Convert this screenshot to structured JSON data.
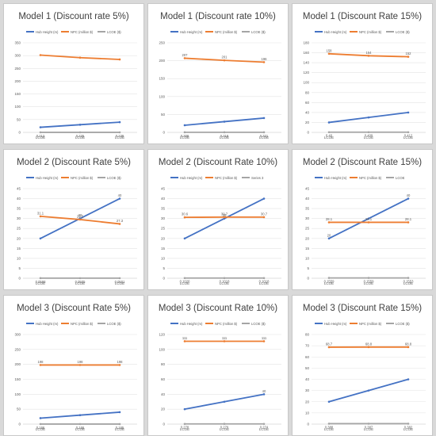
{
  "colors": {
    "hub": "#4472c4",
    "npc": "#ed7d31",
    "lcoe": "#a5a5a5",
    "grid": "#e3e3e3",
    "axis": "#bfbfbf",
    "text": "#595959"
  },
  "chart_data": [
    {
      "type": "line",
      "title": "Model 1 (Discount rate 5%)",
      "categories": [
        "LCOE",
        "LCOE",
        "LCOE"
      ],
      "ylim": [
        0,
        350
      ],
      "yticks": [
        0,
        50,
        100,
        150,
        200,
        250,
        300,
        350
      ],
      "series": [
        {
          "name": "Hub Height (m)",
          "values": [
            20,
            30,
            40
          ],
          "labels": [
            "",
            "",
            ""
          ]
        },
        {
          "name": "NPC (million $)",
          "values": [
            302,
            292,
            285
          ],
          "labels": [
            "",
            "",
            ""
          ]
        },
        {
          "name": "LCOE ($)",
          "values": [
            0.212,
            0.225,
            0.239
          ],
          "labels": [
            "0.212",
            "0.225",
            "0.239"
          ]
        }
      ]
    },
    {
      "type": "line",
      "title": "Model 1 (Discount rate 10%)",
      "categories": [
        "LCOE",
        "LCOE",
        "LCOE"
      ],
      "ylim": [
        0,
        250
      ],
      "yticks": [
        0,
        50,
        100,
        150,
        200,
        250
      ],
      "series": [
        {
          "name": "Hub Height (m)",
          "values": [
            20,
            30,
            40
          ],
          "labels": [
            "",
            "",
            ""
          ]
        },
        {
          "name": "NPC (million $)",
          "values": [
            207,
            201,
            196
          ],
          "labels": [
            "207",
            "201",
            "196"
          ]
        },
        {
          "name": "LCOE ($)",
          "values": [
            0.308,
            0.318,
            0.321
          ],
          "labels": [
            "0.308",
            "0.318",
            "0.321"
          ]
        }
      ]
    },
    {
      "type": "line",
      "title": "Model 1 (Discount Rate 15%)",
      "categories": [
        "LCOE",
        "LCOE",
        "LCOE"
      ],
      "ylim": [
        0,
        180
      ],
      "yticks": [
        0,
        20,
        40,
        60,
        80,
        100,
        120,
        140,
        160,
        180
      ],
      "series": [
        {
          "name": "Hub Height (m)",
          "values": [
            20,
            30,
            40
          ],
          "labels": [
            "",
            "",
            ""
          ]
        },
        {
          "name": "NPC (million $)",
          "values": [
            158,
            154,
            152
          ],
          "labels": [
            "158",
            "154",
            "152"
          ]
        },
        {
          "name": "LCOE ($)",
          "values": [
            0.4,
            0.409,
            0.412
          ],
          "labels": [
            "0.40",
            "0.409",
            "0.412"
          ]
        }
      ]
    },
    {
      "type": "line",
      "title": "Model 2 (Discount Rate 5%)",
      "categories": [
        "LCOE",
        "LCOE",
        "LCOE"
      ],
      "ylim": [
        0,
        45
      ],
      "yticks": [
        0,
        5,
        10,
        15,
        20,
        25,
        30,
        35,
        40,
        45
      ],
      "series": [
        {
          "name": "Hub Height (m)",
          "values": [
            20,
            30,
            40
          ],
          "labels": [
            "",
            "30",
            "40"
          ]
        },
        {
          "name": "NPC (million $)",
          "values": [
            31.1,
            29.5,
            27.3
          ],
          "labels": [
            "31.1",
            "29.5",
            "27.3"
          ]
        },
        {
          "name": "LCOE ($)",
          "values": [
            0.0598,
            0.0505,
            0.0501
          ],
          "labels": [
            "0.0598",
            "0.0505",
            "0.0501"
          ]
        }
      ]
    },
    {
      "type": "line",
      "title": "Model 2 (Discount Rate 10%)",
      "categories": [
        "LCOE",
        "LCOE",
        "LCOE"
      ],
      "ylim": [
        0,
        45
      ],
      "yticks": [
        0,
        5,
        10,
        15,
        20,
        25,
        30,
        35,
        40,
        45
      ],
      "series": [
        {
          "name": "Hub Height (m)",
          "values": [
            20,
            30,
            40
          ],
          "labels": [
            "",
            "30",
            ""
          ]
        },
        {
          "name": "NPC (million $)",
          "values": [
            30.6,
            30.7,
            30.7
          ],
          "labels": [
            "30.6",
            "30.7",
            "30.7"
          ]
        },
        {
          "name": "Series 3",
          "values": [
            0.1026,
            0.1018,
            0.1018
          ],
          "labels": [
            "0.1026",
            "0.1018",
            "0.1018"
          ]
        }
      ]
    },
    {
      "type": "line",
      "title": "Model 2 (Discount Rate 15%)",
      "categories": [
        "LCOE",
        "LCOE",
        "LCOE"
      ],
      "ylim": [
        0,
        45
      ],
      "yticks": [
        0,
        5,
        10,
        15,
        20,
        25,
        30,
        35,
        40,
        45
      ],
      "series": [
        {
          "name": "Hub Height (m)",
          "values": [
            20,
            30,
            40
          ],
          "labels": [
            "20",
            "",
            "40"
          ]
        },
        {
          "name": "NPC (million $)",
          "values": [
            28.1,
            28.1,
            28.1
          ],
          "labels": [
            "28.1",
            "28.1",
            "28.1"
          ]
        },
        {
          "name": "LCOE",
          "values": [
            0.1559,
            0.1559,
            0.1553
          ],
          "labels": [
            "0.1559",
            "0.1559",
            "0.1553"
          ]
        }
      ]
    },
    {
      "type": "line",
      "title": "Model 3 (Discount Rate 5%)",
      "categories": [
        "LCOE",
        "LCOE",
        "LCOE"
      ],
      "ylim": [
        0,
        300
      ],
      "yticks": [
        0,
        50,
        100,
        150,
        200,
        250,
        300
      ],
      "series": [
        {
          "name": "Hub Height (m)",
          "values": [
            20,
            30,
            40
          ],
          "labels": [
            "",
            "",
            ""
          ]
        },
        {
          "name": "NPC (million $)",
          "values": [
            198,
            198,
            198
          ],
          "labels": [
            "198",
            "198",
            "198"
          ]
        },
        {
          "name": "LCOE ($)",
          "values": [
            0.166,
            0.166,
            0.165
          ],
          "labels": [
            "0.166",
            "0.166",
            "0.165"
          ]
        }
      ]
    },
    {
      "type": "line",
      "title": "Model 3 (Discount Rate 10%)",
      "categories": [
        "LCOE",
        "LCOE",
        "LCOE"
      ],
      "ylim": [
        0,
        120
      ],
      "yticks": [
        0,
        20,
        40,
        60,
        80,
        100,
        120
      ],
      "series": [
        {
          "name": "Hub Height (m)",
          "values": [
            20,
            30,
            40
          ],
          "labels": [
            "",
            "",
            "40"
          ]
        },
        {
          "name": "NPC (million $)",
          "values": [
            111,
            111,
            111
          ],
          "labels": [
            "111",
            "111",
            "111"
          ]
        },
        {
          "name": "LCOE ($)",
          "values": [
            0.278,
            0.279,
            0.274
          ],
          "labels": [
            "0.278",
            "0.279",
            "0.274"
          ]
        }
      ]
    },
    {
      "type": "line",
      "title": "Model 3 (Discount Rate 15%)",
      "categories": [
        "LCOE",
        "LCOE",
        "LCOE"
      ],
      "ylim": [
        0,
        80
      ],
      "yticks": [
        0,
        10,
        20,
        30,
        40,
        50,
        60,
        70,
        80
      ],
      "series": [
        {
          "name": "Hub Height (m)",
          "values": [
            20,
            30,
            40
          ],
          "labels": [
            "",
            "",
            ""
          ]
        },
        {
          "name": "NPC (million $)",
          "values": [
            68.7,
            68.8,
            68.8
          ],
          "labels": [
            "68.7",
            "68.8",
            "68.8"
          ]
        },
        {
          "name": "LCOE ($)",
          "values": [
            0.388,
            0.387,
            0.382
          ],
          "labels": [
            "0.388",
            "0.387",
            "0.382"
          ]
        }
      ]
    }
  ]
}
